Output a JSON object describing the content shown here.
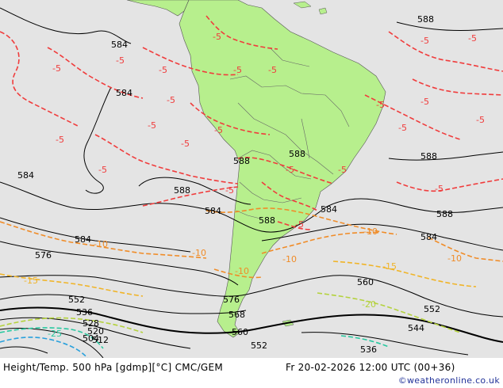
{
  "footer": {
    "product_label": "Height/Temp. 500 hPa [gdmp][°C] CMC/GEM",
    "valid_time": "Fr 20-02-2026 12:00 UTC (00+36)",
    "credit": "©weatheronline.co.uk"
  },
  "colors": {
    "ocean": "#e4e4e4",
    "land": "#b7ef8d",
    "geopotential_lines": "#000000",
    "temp_minus5": "#f03c3c",
    "temp_minus10": "#f08c28",
    "temp_minus15": "#f0b428",
    "temp_minus20": "#b4d23c",
    "temp_minus25": "#28c8a0",
    "temp_minus30": "#28a0dc"
  },
  "geopotential_labels": [
    "588",
    "584",
    "584",
    "584",
    "588",
    "588",
    "588",
    "584",
    "588",
    "584",
    "588",
    "584",
    "584",
    "576",
    "576",
    "568",
    "560",
    "552",
    "552",
    "544",
    "536",
    "536",
    "528",
    "520",
    "512",
    "504",
    "560",
    "552",
    "588"
  ],
  "temperature_labels": {
    "minus5": [
      "-5",
      "-5",
      "-5",
      "-5",
      "-5",
      "-5",
      "-5",
      "-5",
      "-5",
      "-5",
      "-5",
      "-5",
      "-5",
      "-5",
      "-5",
      "-5",
      "-5",
      "-5",
      "-5",
      "-5",
      "-5",
      "-5",
      "-5"
    ],
    "minus10": [
      "-10",
      "-10",
      "-10",
      "-10",
      "-10",
      "-10"
    ],
    "minus15": [
      "-15",
      "-15"
    ],
    "minus20": [
      "-20"
    ],
    "minus25": [
      "-25"
    ]
  }
}
